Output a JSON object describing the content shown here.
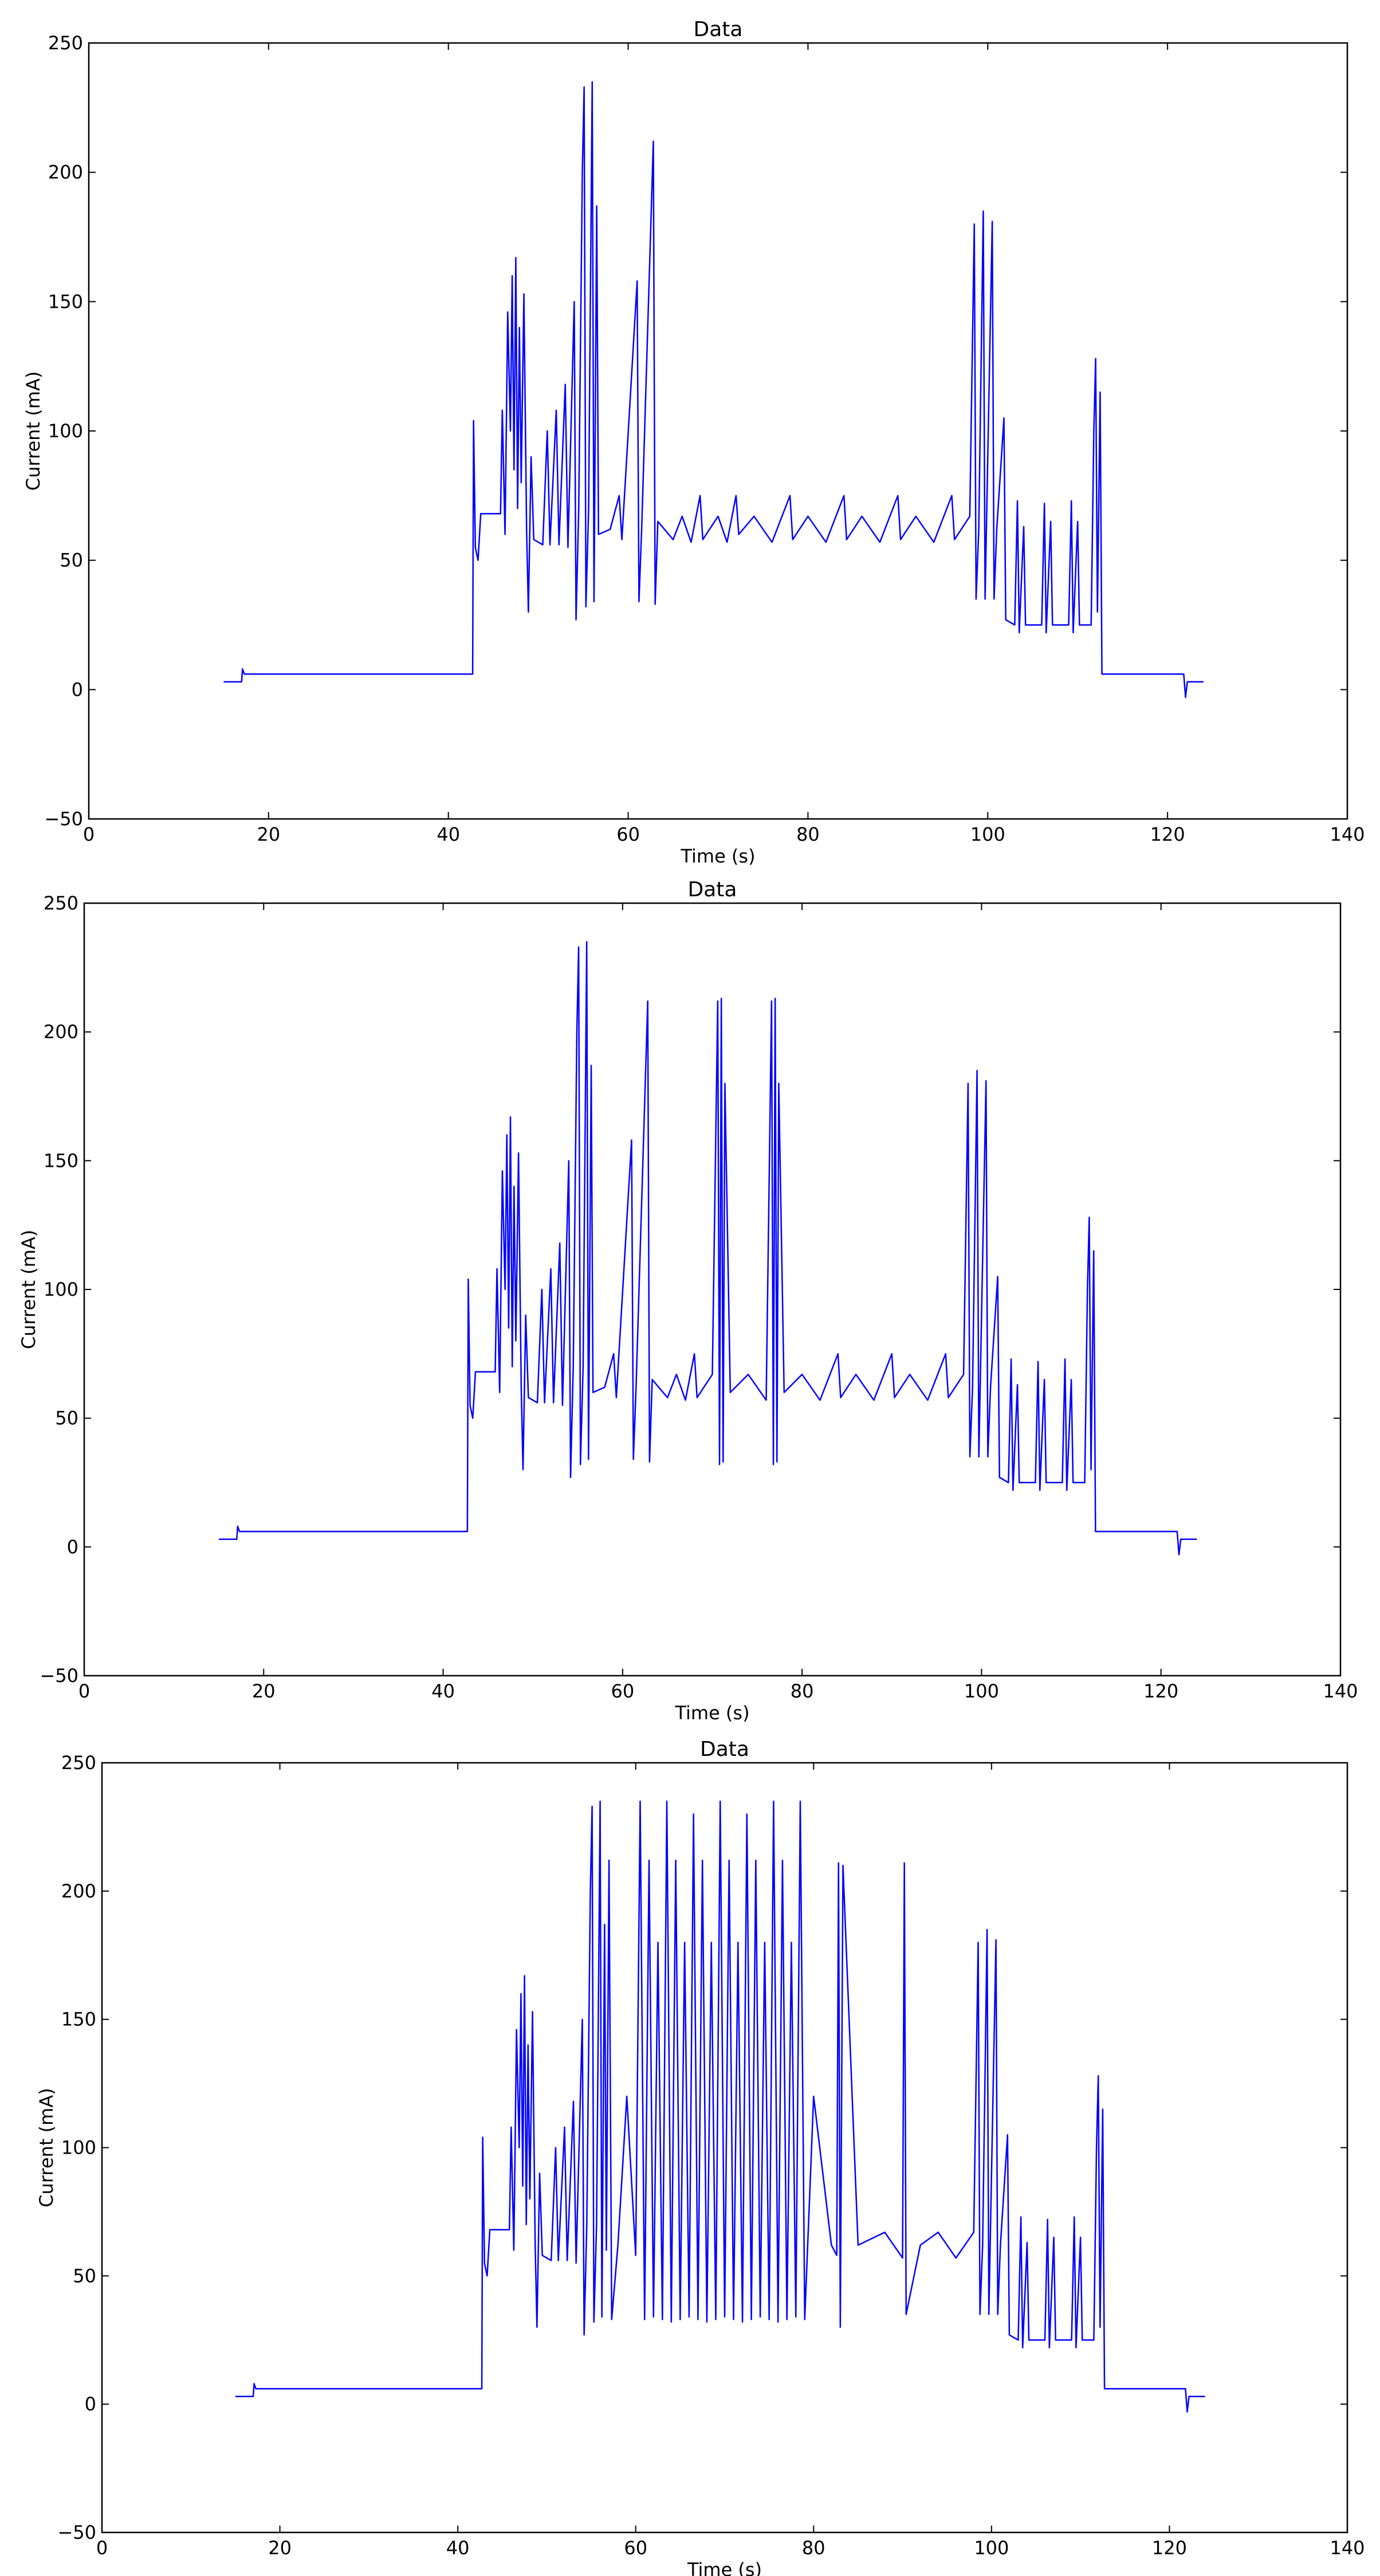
{
  "chart_data": [
    {
      "type": "line",
      "title": "Data",
      "x_label": "Time (s)",
      "y_label": "Current (mA)",
      "color": "#0000ff",
      "xlim": [
        0,
        140
      ],
      "xticks": [
        0,
        20,
        40,
        60,
        80,
        100,
        120,
        140
      ],
      "ylim": [
        -50,
        250
      ],
      "yticks": [
        {
          "value": -50,
          "label": "−50"
        },
        0,
        50,
        100,
        150,
        200,
        250
      ],
      "x": [
        15,
        17,
        17.1,
        17.3,
        42.7,
        42.8,
        43,
        43.3,
        43.6,
        45.8,
        46,
        46.3,
        46.6,
        46.9,
        47.1,
        47.3,
        47.5,
        47.7,
        47.9,
        48.1,
        48.4,
        48.7,
        48.9,
        49.2,
        49.5,
        50.5,
        51,
        51.3,
        52,
        52.3,
        53,
        53.3,
        54,
        54.2,
        54.5,
        54.9,
        55.1,
        55.3,
        55.6,
        56,
        56.2,
        56.5,
        56.7,
        58,
        59,
        59.3,
        61,
        61.2,
        61.5,
        62.8,
        63,
        63.3,
        65,
        66,
        67,
        68,
        68.3,
        70,
        71,
        72,
        72.3,
        74,
        76,
        78,
        78.3,
        80,
        82,
        84,
        84.3,
        86,
        88,
        90,
        90.3,
        92,
        94,
        96,
        96.3,
        98,
        98.5,
        98.7,
        99,
        99.5,
        99.7,
        100.5,
        100.7,
        101,
        101.8,
        102,
        103,
        103.3,
        103.5,
        104,
        104.2,
        106,
        106.3,
        106.5,
        107,
        107.2,
        109,
        109.3,
        109.5,
        110,
        110.2,
        111.5,
        111.8,
        112,
        112.2,
        112.5,
        112.7,
        121.8,
        122,
        122.2,
        124
      ],
      "values": [
        3,
        3,
        8,
        6,
        6,
        104,
        55,
        50,
        68,
        68,
        108,
        60,
        146,
        100,
        160,
        85,
        167,
        70,
        140,
        80,
        153,
        62,
        30,
        90,
        58,
        56,
        100,
        56,
        108,
        56,
        118,
        55,
        150,
        27,
        70,
        200,
        233,
        32,
        70,
        235,
        34,
        187,
        60,
        62,
        75,
        58,
        158,
        34,
        62,
        212,
        33,
        65,
        58,
        67,
        57,
        75,
        58,
        67,
        57,
        75,
        60,
        67,
        57,
        75,
        58,
        67,
        57,
        75,
        58,
        67,
        57,
        75,
        58,
        67,
        57,
        75,
        58,
        67,
        180,
        35,
        62,
        185,
        35,
        181,
        35,
        62,
        105,
        27,
        25,
        73,
        22,
        63,
        25,
        25,
        72,
        22,
        65,
        25,
        25,
        73,
        22,
        65,
        25,
        25,
        100,
        128,
        30,
        115,
        6,
        6,
        -3,
        3,
        3
      ]
    },
    {
      "type": "line",
      "title": "Data",
      "x_label": "Time (s)",
      "y_label": "Current (mA)",
      "color": "#0000ff",
      "xlim": [
        0,
        140
      ],
      "xticks": [
        0,
        20,
        40,
        60,
        80,
        100,
        120,
        140
      ],
      "ylim": [
        -50,
        250
      ],
      "yticks": [
        {
          "value": -50,
          "label": "−50"
        },
        0,
        50,
        100,
        150,
        200,
        250
      ],
      "x": [
        15,
        17,
        17.1,
        17.3,
        42.7,
        42.8,
        43,
        43.3,
        43.6,
        45.8,
        46,
        46.3,
        46.6,
        46.9,
        47.1,
        47.3,
        47.5,
        47.7,
        47.9,
        48.1,
        48.4,
        48.7,
        48.9,
        49.2,
        49.5,
        50.5,
        51,
        51.3,
        52,
        52.3,
        53,
        53.3,
        54,
        54.2,
        54.5,
        54.9,
        55.1,
        55.3,
        55.6,
        56,
        56.2,
        56.5,
        56.7,
        58,
        59,
        59.3,
        61,
        61.2,
        61.5,
        62.8,
        63,
        63.3,
        65,
        66,
        67,
        68,
        68.3,
        70,
        70.6,
        70.8,
        71,
        71.2,
        71.4,
        72,
        74,
        76,
        76.6,
        76.8,
        77,
        77.2,
        77.4,
        78,
        80,
        82,
        84,
        84.3,
        86,
        88,
        90,
        90.3,
        92,
        94,
        96,
        96.3,
        98,
        98.5,
        98.7,
        99,
        99.5,
        99.7,
        100.5,
        100.7,
        101,
        101.8,
        102,
        103,
        103.3,
        103.5,
        104,
        104.2,
        106,
        106.3,
        106.5,
        107,
        107.2,
        109,
        109.3,
        109.5,
        110,
        110.2,
        111.5,
        111.8,
        112,
        112.2,
        112.5,
        112.7,
        121.8,
        122,
        122.2,
        124
      ],
      "values": [
        3,
        3,
        8,
        6,
        6,
        104,
        55,
        50,
        68,
        68,
        108,
        60,
        146,
        100,
        160,
        85,
        167,
        70,
        140,
        80,
        153,
        62,
        30,
        90,
        58,
        56,
        100,
        56,
        108,
        56,
        118,
        55,
        150,
        27,
        70,
        200,
        233,
        32,
        70,
        235,
        34,
        187,
        60,
        62,
        75,
        58,
        158,
        34,
        62,
        212,
        33,
        65,
        58,
        67,
        57,
        75,
        58,
        67,
        212,
        32,
        213,
        33,
        180,
        60,
        67,
        57,
        212,
        32,
        213,
        33,
        180,
        60,
        67,
        57,
        75,
        58,
        67,
        57,
        75,
        58,
        67,
        57,
        75,
        58,
        67,
        180,
        35,
        62,
        185,
        35,
        181,
        35,
        62,
        105,
        27,
        25,
        73,
        22,
        63,
        25,
        25,
        72,
        22,
        65,
        25,
        25,
        73,
        22,
        65,
        25,
        25,
        100,
        128,
        30,
        115,
        6,
        6,
        -3,
        3,
        3
      ]
    },
    {
      "type": "line",
      "title": "Data",
      "x_label": "Time (s)",
      "y_label": "Current (mA)",
      "color": "#0000ff",
      "xlim": [
        0,
        140
      ],
      "xticks": [
        0,
        20,
        40,
        60,
        80,
        100,
        120,
        140
      ],
      "ylim": [
        -50,
        250
      ],
      "yticks": [
        {
          "value": -50,
          "label": "−50"
        },
        0,
        50,
        100,
        150,
        200,
        250
      ],
      "x": [
        15,
        17,
        17.1,
        17.3,
        42.7,
        42.8,
        43,
        43.3,
        43.6,
        45.8,
        46,
        46.3,
        46.6,
        46.9,
        47.1,
        47.3,
        47.5,
        47.7,
        47.9,
        48.1,
        48.4,
        48.7,
        48.9,
        49.2,
        49.5,
        50.5,
        51,
        51.3,
        52,
        52.3,
        53,
        53.3,
        54,
        54.2,
        54.5,
        54.9,
        55.1,
        55.3,
        55.6,
        56,
        56.2,
        56.5,
        56.7,
        57,
        57.3,
        58,
        59,
        60,
        60.5,
        61,
        61.5,
        62,
        62.5,
        63,
        63.5,
        64,
        64.5,
        65,
        65.5,
        66,
        66.5,
        67,
        67.5,
        68,
        68.5,
        69,
        69.5,
        70,
        70.5,
        71,
        71.5,
        72,
        72.5,
        73,
        73.5,
        74,
        74.5,
        75,
        75.5,
        76,
        76.5,
        77,
        77.5,
        78,
        78.5,
        79,
        80,
        82,
        82.6,
        82.8,
        83,
        83.3,
        85,
        88,
        90,
        90.2,
        90.4,
        92,
        94,
        96,
        98,
        98.5,
        98.7,
        99,
        99.5,
        99.7,
        100.5,
        100.7,
        101,
        101.8,
        102,
        103,
        103.3,
        103.5,
        104,
        104.2,
        106,
        106.3,
        106.5,
        107,
        107.2,
        109,
        109.3,
        109.5,
        110,
        110.2,
        111.5,
        111.8,
        112,
        112.2,
        112.5,
        112.7,
        121.8,
        122,
        122.2,
        124
      ],
      "values": [
        3,
        3,
        8,
        6,
        6,
        104,
        55,
        50,
        68,
        68,
        108,
        60,
        146,
        100,
        160,
        85,
        167,
        70,
        140,
        80,
        153,
        62,
        30,
        90,
        58,
        56,
        100,
        56,
        108,
        56,
        118,
        55,
        150,
        27,
        70,
        200,
        233,
        32,
        70,
        235,
        34,
        187,
        60,
        212,
        33,
        62,
        120,
        58,
        235,
        33,
        212,
        34,
        180,
        33,
        235,
        32,
        212,
        33,
        180,
        34,
        230,
        33,
        212,
        32,
        180,
        33,
        235,
        34,
        212,
        33,
        180,
        32,
        230,
        33,
        212,
        34,
        180,
        33,
        235,
        32,
        212,
        33,
        180,
        34,
        235,
        33,
        120,
        62,
        58,
        211,
        30,
        210,
        62,
        67,
        57,
        211,
        35,
        62,
        67,
        57,
        67,
        180,
        35,
        62,
        185,
        35,
        181,
        35,
        62,
        105,
        27,
        25,
        73,
        22,
        63,
        25,
        25,
        72,
        22,
        65,
        25,
        25,
        73,
        22,
        65,
        25,
        25,
        100,
        128,
        30,
        115,
        6,
        6,
        -3,
        3,
        3
      ]
    }
  ]
}
